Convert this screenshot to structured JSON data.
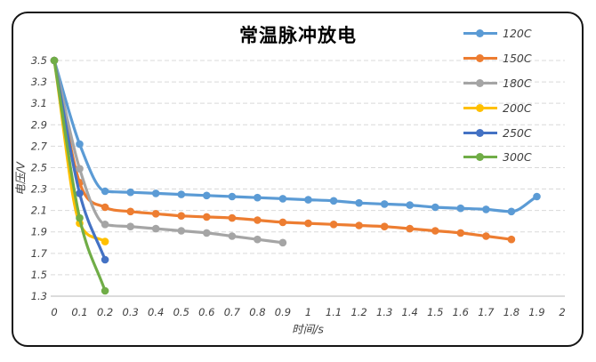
{
  "chart_data": {
    "type": "line",
    "title": "常温脉冲放电",
    "xlabel": "时间/s",
    "ylabel": "电压/V",
    "xlim": [
      0,
      2
    ],
    "ylim": [
      1.3,
      3.5
    ],
    "x_step": 0.1,
    "grid": "horizontal-dashed",
    "legend_position": "top-right",
    "x_ticks": [
      "0",
      "0.1",
      "0.2",
      "0.3",
      "0.4",
      "0.5",
      "0.6",
      "0.7",
      "0.8",
      "0.9",
      "1",
      "1.1",
      "1.2",
      "1.3",
      "1.4",
      "1.5",
      "1.6",
      "1.7",
      "1.8",
      "1.9",
      "2"
    ],
    "y_ticks": [
      "3.5",
      "3.3",
      "3.1",
      "2.9",
      "2.7",
      "2.5",
      "2.3",
      "2.1",
      "1.9",
      "1.7",
      "1.5",
      "1.3"
    ],
    "series": [
      {
        "name": "120C",
        "color": "#5B9BD5",
        "values": [
          3.5,
          2.72,
          2.28,
          2.27,
          2.26,
          2.25,
          2.24,
          2.23,
          2.22,
          2.21,
          2.2,
          2.19,
          2.17,
          2.16,
          2.15,
          2.13,
          2.12,
          2.11,
          2.09,
          2.23
        ]
      },
      {
        "name": "150C",
        "color": "#ED7D31",
        "values": [
          3.5,
          2.36,
          2.13,
          2.09,
          2.07,
          2.05,
          2.04,
          2.03,
          2.01,
          1.99,
          1.98,
          1.97,
          1.96,
          1.95,
          1.93,
          1.91,
          1.89,
          1.86,
          1.83
        ]
      },
      {
        "name": "180C",
        "color": "#A5A5A5",
        "values": [
          3.5,
          2.49,
          1.97,
          1.95,
          1.93,
          1.91,
          1.89,
          1.86,
          1.83,
          1.8
        ]
      },
      {
        "name": "200C",
        "color": "#FFC000",
        "values": [
          3.5,
          1.98,
          1.81
        ]
      },
      {
        "name": "250C",
        "color": "#4472C4",
        "values": [
          3.5,
          2.26,
          1.64
        ]
      },
      {
        "name": "300C",
        "color": "#70AD47",
        "values": [
          3.5,
          2.03,
          1.35
        ]
      }
    ]
  }
}
